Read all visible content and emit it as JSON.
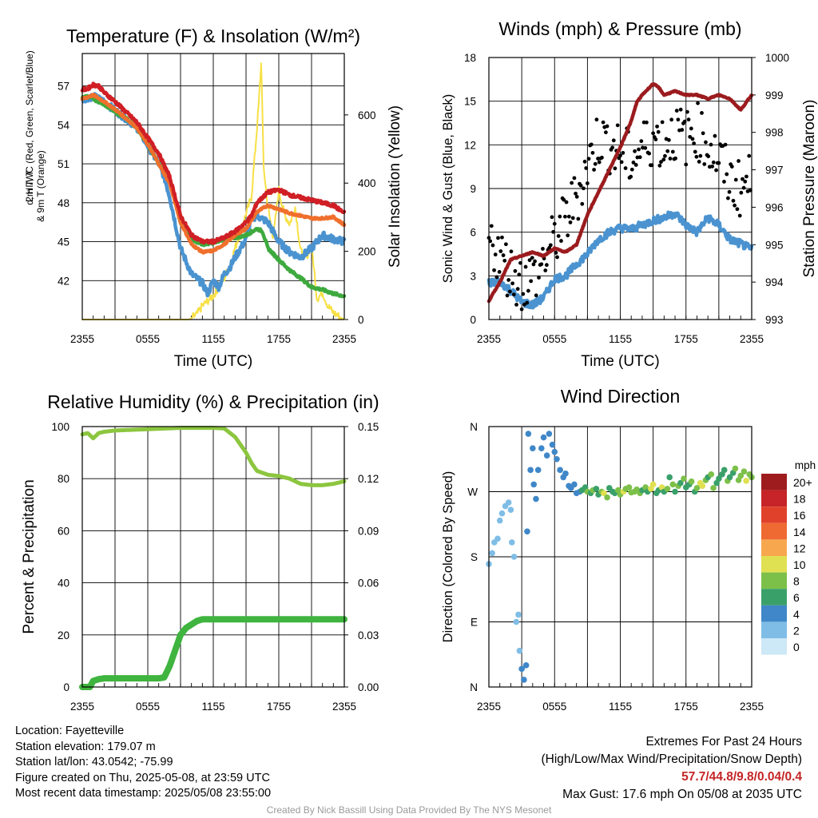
{
  "colors": {
    "red": "#d01f25",
    "green": "#3eaa3e",
    "orange": "#f06f2c",
    "blue": "#4a93d0",
    "yellow": "#f7e045",
    "maroon": "#9b1b1e",
    "black": "#000000",
    "rh_green": "#8cc63f",
    "precip_green": "#3fb43f"
  },
  "chart_data": [
    {
      "type": "line",
      "title": "Temperature (F) & Insolation (W/m²)",
      "xlabel": "Time (UTC)",
      "ylabel_left": "2m T, Td, HI/WC (Red, Green, Scarlet/Blue) & 9m T (Orange)",
      "ylabel_right": "Solar Insolation (Yellow)",
      "x_ticks": [
        "2355",
        "0555",
        "1155",
        "1755",
        "2355"
      ],
      "x_range_hours": [
        0,
        24
      ],
      "ylim_left": [
        39,
        59.5
      ],
      "yticks_left": [
        42,
        45,
        48,
        51,
        54,
        57
      ],
      "ylim_right": [
        0,
        780
      ],
      "yticks_right": [
        0,
        200,
        400,
        600
      ],
      "grid": true,
      "series": [
        {
          "color": "red",
          "axis": "left",
          "x": [
            0,
            0.5,
            1,
            1.5,
            2,
            3,
            4,
            5,
            6,
            7,
            8,
            9,
            10,
            11,
            12,
            13,
            14,
            15,
            15.5,
            16,
            17,
            18,
            19,
            20,
            21,
            22,
            23,
            24
          ],
          "y": [
            56.7,
            56.8,
            57.1,
            57.0,
            56.5,
            55.8,
            55.0,
            54.2,
            53.0,
            51.8,
            50.0,
            47.0,
            45.5,
            45.0,
            45.0,
            45.3,
            45.8,
            46.5,
            47.0,
            48.0,
            48.8,
            49.0,
            48.6,
            48.4,
            48.2,
            48.0,
            47.8,
            47.2
          ]
        },
        {
          "color": "orange",
          "axis": "left",
          "x": [
            0,
            1,
            2,
            3,
            4,
            5,
            6,
            7,
            8,
            9,
            10,
            11,
            12,
            13,
            14,
            15,
            16,
            17,
            18,
            19,
            20,
            21,
            22,
            23,
            24
          ],
          "y": [
            56.0,
            56.3,
            55.8,
            55.2,
            54.5,
            53.8,
            52.5,
            51.0,
            49.5,
            46.5,
            44.8,
            44.2,
            44.3,
            44.8,
            45.5,
            46.0,
            47.3,
            47.8,
            47.5,
            47.2,
            47.0,
            46.8,
            46.8,
            46.9,
            46.3
          ]
        },
        {
          "color": "green",
          "axis": "left",
          "x": [
            0,
            0.5,
            1,
            2,
            3,
            4,
            5,
            6,
            7,
            8,
            9,
            10,
            11,
            12,
            13,
            14,
            15,
            16,
            16.5,
            17,
            18,
            19,
            20,
            21,
            22,
            23,
            24
          ],
          "y": [
            56.1,
            56.2,
            56.0,
            55.6,
            55.0,
            54.5,
            53.8,
            52.5,
            51.0,
            49.8,
            46.5,
            45.2,
            44.8,
            44.9,
            45.2,
            45.3,
            45.5,
            46.0,
            45.8,
            44.5,
            43.6,
            42.8,
            42.2,
            41.5,
            41.3,
            41.0,
            40.8
          ]
        },
        {
          "color": "blue",
          "axis": "left",
          "x": [
            0,
            1,
            2,
            3,
            4,
            5,
            6,
            7,
            7.5,
            8,
            8.5,
            9,
            10,
            11,
            11.5,
            12,
            12.5,
            13,
            13.5,
            14,
            14.5,
            15,
            15.5,
            16,
            17,
            18,
            19,
            20,
            21,
            22,
            23,
            24
          ],
          "y": [
            56.0,
            56.2,
            55.8,
            55.1,
            54.5,
            53.8,
            52.4,
            51.0,
            50.0,
            48.5,
            46.5,
            44.5,
            42.5,
            41.8,
            41.0,
            42.0,
            41.5,
            42.5,
            43.0,
            43.8,
            44.5,
            45.2,
            46.8,
            47.0,
            46.5,
            45.0,
            44.2,
            43.8,
            44.5,
            45.5,
            45.2,
            45.0
          ]
        },
        {
          "color": "yellow",
          "axis": "right",
          "x": [
            0,
            9.8,
            10.5,
            11,
            12,
            13,
            13.5,
            14,
            14.5,
            15,
            15.5,
            15.8,
            16,
            16.2,
            16.4,
            16.6,
            17,
            17.5,
            18,
            18.5,
            19,
            19.5,
            20,
            20.5,
            21,
            21.5,
            22,
            22.5,
            23,
            23.5,
            24
          ],
          "y": [
            0,
            0,
            15,
            40,
            70,
            120,
            160,
            210,
            260,
            310,
            360,
            480,
            560,
            650,
            760,
            450,
            330,
            240,
            380,
            310,
            280,
            330,
            200,
            180,
            220,
            60,
            80,
            40,
            20,
            10,
            0
          ]
        }
      ]
    },
    {
      "type": "line",
      "title": "Winds (mph) & Pressure (mb)",
      "xlabel": "Time (UTC)",
      "ylabel_left": "Sonic Wind & Gust (Blue, Black)",
      "ylabel_right": "Station Pressure (Maroon)",
      "x_ticks": [
        "2355",
        "0555",
        "1155",
        "1755",
        "2355"
      ],
      "x_range_hours": [
        0,
        24
      ],
      "ylim_left": [
        0,
        18
      ],
      "yticks_left": [
        0,
        3,
        6,
        9,
        12,
        15,
        18
      ],
      "ylim_right": [
        993,
        1000
      ],
      "yticks_right": [
        993,
        994,
        995,
        996,
        997,
        998,
        999,
        1000
      ],
      "grid": true,
      "series": [
        {
          "name": "Sonic Wind",
          "color": "blue",
          "axis": "left",
          "x": [
            0,
            1,
            2,
            3,
            4,
            5,
            6,
            7,
            8,
            9,
            10,
            11,
            12,
            13,
            14,
            15,
            16,
            17,
            18,
            19,
            20,
            21,
            22,
            23,
            24
          ],
          "y": [
            2.5,
            2.6,
            2.0,
            1.2,
            1.0,
            1.5,
            2.8,
            3.0,
            3.8,
            4.5,
            5.5,
            6.0,
            6.3,
            6.2,
            6.5,
            6.8,
            7.0,
            7.3,
            6.5,
            6.0,
            7.0,
            6.5,
            5.5,
            5.2,
            4.8
          ]
        },
        {
          "name": "Gust",
          "color": "black",
          "axis": "left",
          "x": [
            0,
            1,
            2,
            3,
            4,
            5,
            6,
            7,
            8,
            9,
            10,
            11,
            12,
            13,
            14,
            15,
            16,
            17,
            18,
            19,
            20,
            21,
            22,
            23,
            24
          ],
          "y": [
            5.5,
            4.5,
            3.2,
            2.5,
            3.0,
            4.0,
            5.5,
            6.8,
            8.5,
            10.5,
            12.5,
            12.0,
            11.5,
            11.0,
            11.8,
            12.5,
            12.2,
            12.8,
            12.5,
            13.0,
            12.0,
            11.0,
            9.5,
            9.0,
            9.5
          ]
        },
        {
          "name": "Pressure",
          "color": "maroon",
          "axis": "right",
          "x": [
            0,
            1,
            2,
            3,
            4,
            5,
            6,
            7,
            8,
            9,
            10,
            11,
            12,
            13,
            13.5,
            14,
            15,
            15.5,
            16,
            17,
            18,
            19,
            20,
            21,
            22,
            23,
            24
          ],
          "y": [
            993.5,
            994.0,
            994.6,
            994.7,
            994.8,
            994.7,
            994.9,
            994.8,
            995.0,
            995.8,
            996.4,
            997.0,
            997.6,
            998.3,
            998.8,
            999.0,
            999.3,
            999.2,
            999.0,
            999.1,
            999.0,
            999.0,
            998.9,
            999.0,
            998.9,
            998.6,
            999.0
          ]
        }
      ]
    },
    {
      "type": "line",
      "title": "Relative Humidity (%) & Precipitation (in)",
      "ylabel_left": "Percent & Precipitation",
      "x_ticks": [
        "2355",
        "0555",
        "1155",
        "1755",
        "2355"
      ],
      "x_range_hours": [
        0,
        24
      ],
      "ylim_left": [
        0,
        100
      ],
      "yticks_left": [
        0,
        20,
        40,
        60,
        80,
        100
      ],
      "ylim_right": [
        0,
        0.15
      ],
      "yticks_right_labels": [
        "0.00",
        "0.03",
        "0.06",
        "0.09",
        "0.12",
        "0.15"
      ],
      "yticks_right": [
        0,
        0.03,
        0.06,
        0.09,
        0.12,
        0.15
      ],
      "grid": true,
      "series": [
        {
          "name": "RH",
          "color": "rh_green",
          "axis": "left",
          "x": [
            0,
            0.5,
            1,
            1.5,
            2,
            3,
            6,
            9,
            12,
            13,
            14,
            15,
            15.5,
            16,
            17,
            18,
            19,
            20,
            21,
            22,
            23,
            24
          ],
          "y": [
            97,
            97.5,
            95.5,
            97.5,
            98,
            98.5,
            99,
            99.5,
            99.5,
            99.3,
            96,
            90,
            86,
            83,
            81.5,
            81,
            80,
            78,
            77.5,
            77.5,
            78,
            79
          ]
        },
        {
          "name": "Precipitation",
          "color": "precip_green",
          "axis": "right",
          "x": [
            0,
            0.7,
            1,
            1.5,
            2,
            7,
            7.5,
            8,
            8.5,
            9,
            9.5,
            10,
            10.5,
            11,
            24
          ],
          "y": [
            0,
            0,
            0.0035,
            0.0045,
            0.005,
            0.005,
            0.0055,
            0.012,
            0.021,
            0.03,
            0.034,
            0.036,
            0.038,
            0.039,
            0.039
          ]
        }
      ]
    },
    {
      "type": "scatter",
      "title": "Wind Direction",
      "ylabel_left": "Direction (Colored By Speed)",
      "x_ticks": [
        "2355",
        "0555",
        "1155",
        "1755",
        "2355"
      ],
      "x_range_hours": [
        0,
        24
      ],
      "y_ticks": [
        "N",
        "E",
        "S",
        "W",
        "N"
      ],
      "ylim": [
        0,
        360
      ],
      "grid": true,
      "colorbar": {
        "unit": "mph",
        "labels": [
          "0",
          "2",
          "4",
          "6",
          "8",
          "10",
          "12",
          "14",
          "16",
          "18",
          "20+"
        ],
        "colors": [
          "#cde8f7",
          "#7fbde6",
          "#3f87c8",
          "#3aa06a",
          "#7cc04a",
          "#e0e053",
          "#f7a84e",
          "#ef6a32",
          "#e0412b",
          "#c62428",
          "#9e1b1e"
        ]
      },
      "x": [
        0,
        0.3,
        0.5,
        0.8,
        1.0,
        1.2,
        1.5,
        1.8,
        2.0,
        2.1,
        2.3,
        2.5,
        2.7,
        2.8,
        3.0,
        3.2,
        3.4,
        3.5,
        3.6,
        3.8,
        4.0,
        4.1,
        4.3,
        4.5,
        4.8,
        5.0,
        5.3,
        5.5,
        5.8,
        6.0,
        6.2,
        6.5,
        6.8,
        7.0,
        7.3,
        7.5,
        7.8,
        8.0,
        8.3,
        8.5,
        8.8,
        9.0,
        9.3,
        9.5,
        9.8,
        10.0,
        10.3,
        10.5,
        10.8,
        11.0,
        11.3,
        11.5,
        11.8,
        12.0,
        12.3,
        12.5,
        12.8,
        13.0,
        13.3,
        13.5,
        13.8,
        14.0,
        14.3,
        14.5,
        14.8,
        15.0,
        15.3,
        15.5,
        15.8,
        16.0,
        16.3,
        16.5,
        16.8,
        17.0,
        17.3,
        17.5,
        17.8,
        18.0,
        18.3,
        18.5,
        18.8,
        19.0,
        19.3,
        19.5,
        19.8,
        20.0,
        20.3,
        20.5,
        20.8,
        21.0,
        21.3,
        21.5,
        21.8,
        22.0,
        22.3,
        22.5,
        22.8,
        23.0,
        23.3,
        23.5,
        23.8,
        24.0
      ],
      "y": [
        170,
        185,
        200,
        205,
        230,
        240,
        250,
        255,
        245,
        200,
        180,
        90,
        100,
        50,
        25,
        10,
        30,
        215,
        350,
        300,
        330,
        280,
        260,
        300,
        330,
        345,
        320,
        350,
        335,
        325,
        315,
        300,
        290,
        295,
        278,
        275,
        280,
        268,
        270,
        272,
        276,
        270,
        268,
        272,
        274,
        266,
        270,
        268,
        262,
        275,
        270,
        268,
        272,
        266,
        270,
        274,
        276,
        269,
        270,
        273,
        268,
        272,
        276,
        270,
        274,
        280,
        268,
        272,
        276,
        270,
        274,
        290,
        280,
        270,
        278,
        282,
        288,
        276,
        280,
        284,
        270,
        275,
        282,
        278,
        286,
        290,
        294,
        275,
        282,
        288,
        294,
        300,
        285,
        290,
        296,
        302,
        286,
        292,
        298,
        285,
        294,
        290
      ]
    }
  ],
  "footer": {
    "location": "Location: Fayetteville",
    "elevation": "Station elevation: 179.07 m",
    "latlon": "Station lat/lon: 43.0542; -75.99",
    "created": "Figure created on Thu, 2025-05-08, at 23:59 UTC",
    "recent": "Most recent data timestamp: 2025/05/08 23:55:00",
    "extremes_title": "Extremes For Past 24 Hours",
    "extremes_subtitle": "(High/Low/Max Wind/Precipitation/Snow Depth)",
    "extremes_values": "57.7/44.8/9.8/0.04/0.4",
    "max_gust": "Max Gust: 17.6 mph On 05/08 at 2035 UTC",
    "credit": "Created By Nick Bassill Using Data Provided By The NYS Mesonet"
  }
}
